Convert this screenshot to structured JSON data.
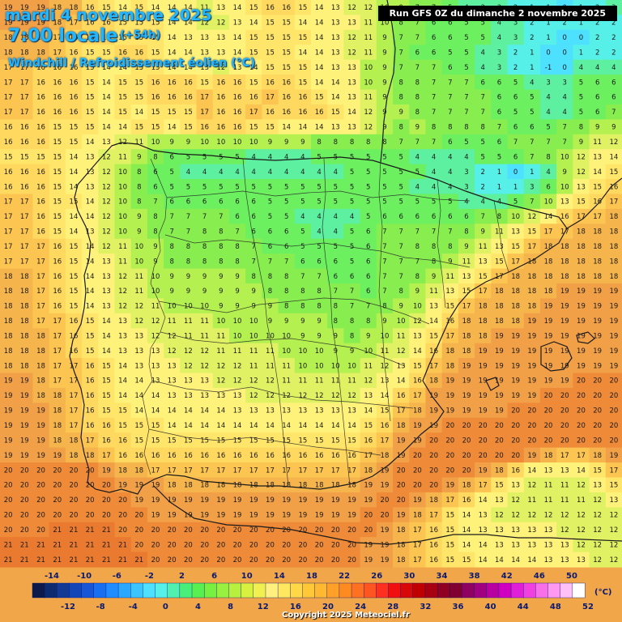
{
  "header": {
    "date": "mardi 4 novembre 2025",
    "hour": "7:00 locale",
    "offset": "(+54h)",
    "variable": "Windchill / Refroidissement éolien (°C)",
    "run": "Run GFS 0Z du dimanche 2 novembre 2025"
  },
  "legend": {
    "unit": "(°C)",
    "top_labels": [
      "-14",
      "-10",
      "-6",
      "-2",
      "2",
      "6",
      "10",
      "14",
      "18",
      "22",
      "26",
      "30",
      "34",
      "38",
      "42",
      "46",
      "50"
    ],
    "bottom_labels": [
      "-12",
      "-8",
      "-4",
      "0",
      "4",
      "8",
      "12",
      "16",
      "20",
      "24",
      "28",
      "32",
      "36",
      "40",
      "44",
      "48",
      "52"
    ],
    "colors": [
      "#0b1a4a",
      "#0c2a6e",
      "#123a94",
      "#1446b8",
      "#1856d8",
      "#1a6ef0",
      "#1f8cff",
      "#2aa8ff",
      "#3cc4ff",
      "#4ee0ff",
      "#56f0e8",
      "#50f0b0",
      "#48f07a",
      "#58f050",
      "#78f040",
      "#98f040",
      "#b8f040",
      "#d8f040",
      "#f0f050",
      "#fff080",
      "#ffe860",
      "#ffd848",
      "#ffc838",
      "#ffb830",
      "#ffa028",
      "#ff8a20",
      "#ff7020",
      "#ff5520",
      "#ff3020",
      "#f01010",
      "#d80808",
      "#c00000",
      "#a80010",
      "#900020",
      "#800030",
      "#900060",
      "#a00080",
      "#b800a0",
      "#d000c0",
      "#e020d8",
      "#f040e0",
      "#f870e8",
      "#ff98f0",
      "#ffc0f8",
      "#ffffff"
    ]
  },
  "copyright": "Copyright 2025 Meteociel.fr",
  "colors": {
    "sea": "#f2a64a",
    "sea_warm": "#f08a30",
    "land_cold": "#7ee85a",
    "land_mid": "#c8ee60",
    "land_mild": "#fff27a",
    "snow_cold": "#5cd8f8",
    "border": "#1a1a1a"
  },
  "grid": {
    "columns": 38,
    "rows": 38,
    "rows_data": [
      "19 19 19 18 18 16 15 14 15 14 14 14 11 13 14 15 16 16 15 14 13 12 12 10 9 7 7 5 4 3 3 2 1 1 0 1 2 3",
      "19 19 19 18 17 16 16 15 15 15 14 14 12 12 13 14 15 15 14 14 13 13 11 10 8 7 6 6 5 5 4 3 2 1 2 1 2 2",
      "18 18 18 17 16 16 16 15 15 15 14 13 13 13 14 15 15 15 15 14 13 12 11 9 7 7 6 6 5 5 4 3 2 1 0 0 2 2",
      "18 18 18 17 16 15 15 16 16 15 14 14 13 13 14 15 15 15 14 14 13 12 11 9 7 6 6 5 5 4 3 2 1 0 0 1 2 2",
      "17 17 16 16 16 15 14 14 15 15 14 14 13 12 13 14 15 15 15 14 13 13 10 9 7 7 7 6 5 4 3 2 1 -1 0 4 4 4",
      "17 17 16 16 16 15 14 15 15 16 16 16 15 16 16 15 16 16 15 14 14 13 10 9 8 8 7 7 7 6 6 5 4 3 3 5 6 6",
      "17 17 16 16 16 15 14 15 15 16 16 16 17 16 16 16 17 16 16 15 14 13 11 9 8 8 7 7 7 7 6 6 5 4 4 5 6 6",
      "17 17 16 16 16 15 14 15 14 15 15 15 17 16 16 17 16 16 16 16 15 14 12 9 9 8 7 7 7 7 6 5 5 4 4 5 6 7",
      "16 16 16 15 15 15 14 14 15 15 14 15 16 16 16 15 15 14 14 14 13 13 12 9 8 9 8 8 8 8 7 6 6 5 7 8 9 9",
      "16 16 16 15 15 14 13 12 11 10 9 9 10 10 10 10 9 9 9 8 8 8 8 8 7 7 7 6 5 5 6 7 7 7 7 9 11 12",
      "15 15 15 15 14 13 12 11 9 8 6 5 5 5 5 4 4 4 4 5 5 5 5 5 5 4 4 4 4 5 5 6 7 8 10 12 13 14",
      "16 16 16 15 14 13 12 10 8 6 5 4 4 4 4 4 4 4 4 4 4 5 5 5 5 5 4 4 3 2 1 0 1 4 9 12 14 15",
      "16 16 16 15 14 13 12 10 8 6 5 5 5 5 5 5 5 5 5 5 5 5 5 5 5 4 4 4 3 2 1 1 3 6 10 13 15 16",
      "17 17 16 15 15 14 12 10 8 7 6 6 6 6 6 6 5 5 5 5 5 5 5 5 5 5 5 5 4 4 4 5 7 10 13 15 16 17",
      "17 17 16 15 14 14 12 10 9 8 7 7 7 7 6 6 5 5 4 4 4 4 5 6 6 6 6 6 6 7 8 10 12 14 16 17 17 18",
      "17 17 16 15 14 13 12 10 9 8 7 7 8 8 7 6 6 6 5 4 4 5 6 7 7 7 7 7 8 9 11 13 15 17 17 18 18 18",
      "17 17 17 16 15 14 12 11 10 9 8 8 8 8 8 7 6 6 5 5 5 5 6 7 7 8 8 8 9 11 13 15 17 18 18 18 18 18",
      "17 17 17 16 15 14 13 11 10 9 8 8 8 8 8 7 7 7 6 6 6 5 6 7 7 7 8 9 11 13 15 17 18 18 18 18 18 18",
      "18 18 17 16 15 14 13 12 11 10 9 9 9 9 9 8 8 8 7 7 6 6 6 7 7 8 9 11 13 15 17 18 18 18 18 18 18 18",
      "18 18 17 16 15 14 13 12 11 10 9 9 9 9 9 9 8 8 8 8 7 7 6 7 8 9 11 13 15 17 18 18 18 18 19 19 19 19",
      "18 18 17 16 15 14 13 12 12 11 10 10 10 9 9 9 9 8 8 8 8 7 7 8 9 10 13 15 17 18 18 18 18 19 19 19 19 19",
      "18 18 17 17 16 15 14 13 12 12 11 11 11 10 10 10 9 9 9 9 8 8 8 9 10 12 14 16 18 18 18 18 19 19 19 19 19 19",
      "18 18 18 17 16 15 14 13 13 12 12 11 11 11 10 10 10 10 9 9 9 8 9 10 11 13 15 17 18 18 19 19 19 19 19 19 19 19",
      "18 18 18 17 16 15 14 13 13 13 12 12 12 11 11 11 11 10 10 10 9 9 10 11 12 14 16 18 18 19 19 19 19 19 19 19 19 19",
      "18 18 18 17 17 16 15 14 13 13 13 12 12 12 12 11 11 11 10 10 10 10 11 12 13 15 17 18 19 19 19 19 19 19 19 19 19 19",
      "19 19 18 17 17 16 15 14 14 13 13 13 13 12 12 12 12 11 11 11 11 11 12 13 14 16 18 19 19 19 19 19 19 19 19 20 20 20",
      "19 19 18 18 17 16 15 14 14 14 13 13 13 13 13 12 12 12 12 12 12 12 13 14 16 17 19 19 19 19 19 19 19 20 20 20 20 20",
      "19 19 19 18 17 16 15 15 14 14 14 14 14 14 13 13 13 13 13 13 13 13 14 15 17 18 19 19 19 19 19 20 20 20 20 20 20 20",
      "19 19 19 18 17 16 16 15 15 15 14 14 14 14 14 14 14 14 14 14 14 14 15 16 18 19 19 20 20 20 20 20 20 20 20 20 20 20",
      "19 19 19 18 18 17 16 16 15 15 15 15 15 15 15 15 15 15 15 15 15 15 16 17 19 19 20 20 20 20 20 20 20 20 20 20 20 20",
      "19 19 19 19 18 18 17 16 16 16 16 16 16 16 16 16 16 16 16 16 16 16 17 18 19 20 20 20 20 20 20 20 19 18 17 17 18 19",
      "20 20 20 20 20 20 19 18 18 17 17 17 17 17 17 17 17 17 17 17 17 17 18 19 20 20 20 20 20 19 18 16 14 13 13 14 15 17",
      "20 20 20 20 20 20 20 19 19 19 18 18 18 18 18 18 18 18 18 18 18 18 19 19 20 20 20 19 18 17 15 13 12 11 11 12 13 15",
      "20 20 20 20 20 20 20 20 19 19 19 19 19 19 19 19 19 19 19 19 19 19 19 20 20 19 18 17 16 14 13 12 11 11 11 11 12 13",
      "20 20 20 20 20 20 20 20 20 19 19 19 19 19 19 19 19 19 19 19 19 19 20 20 19 18 17 15 14 13 12 12 12 12 12 12 12 12",
      "20 20 20 21 21 21 21 20 20 20 20 20 20 20 20 20 20 20 20 20 20 20 20 19 18 17 16 15 14 13 13 13 13 13 12 12 12 12",
      "21 21 21 21 21 21 21 21 20 20 20 20 20 20 20 20 20 20 20 20 20 20 19 19 18 17 16 15 14 14 13 13 13 13 13 12 12 12",
      "21 21 21 21 21 21 21 21 21 20 20 20 20 20 20 20 20 20 20 20 20 20 19 19 18 17 16 15 15 14 14 14 14 13 13 13 12 12"
    ]
  }
}
